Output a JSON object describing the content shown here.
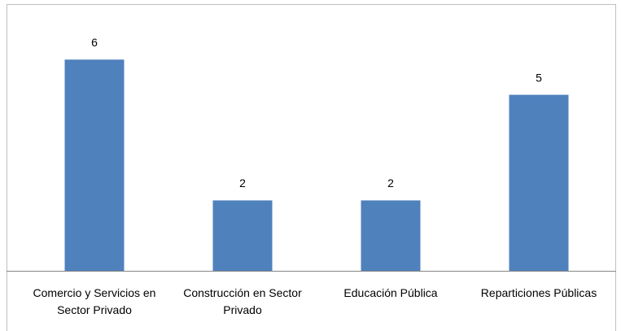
{
  "chart_data": {
    "type": "bar",
    "categories": [
      "Comercio y Servicios en Sector Privado",
      "Construcción en Sector Privado",
      "Educación Pública",
      "Reparticiones Públicas"
    ],
    "values": [
      6,
      2,
      2,
      5
    ],
    "color": "#4f81bd",
    "ylim": [
      0,
      7
    ]
  }
}
